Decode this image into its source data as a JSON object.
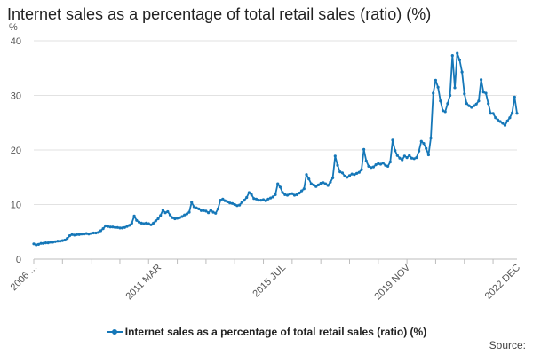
{
  "title": "Internet sales as a percentage of total retail sales (ratio) (%)",
  "source_label": "Source:",
  "colors": {
    "series": "#1577b8",
    "grid": "#e2e2e2",
    "axis": "#bdbdbd"
  },
  "chart_data": {
    "type": "line",
    "title": "Internet sales as a percentage of total retail sales (ratio) (%)",
    "xlabel": "",
    "ylabel": "%",
    "ylim": [
      0,
      40
    ],
    "yticks": [
      0,
      10,
      20,
      30,
      40
    ],
    "xtick_labels": [
      "2006 ...",
      "2011 MAR",
      "2015 JUL",
      "2019 NOV",
      "2022 DEC"
    ],
    "grid": true,
    "legend_position": "bottom",
    "x_start": "2006 NOV",
    "x_end": "2022 DEC",
    "series": [
      {
        "name": "Internet sales as a percentage of total retail sales (ratio) (%)",
        "values": [
          2.8,
          2.6,
          2.7,
          2.9,
          2.9,
          3.0,
          3.0,
          3.1,
          3.1,
          3.2,
          3.3,
          3.3,
          3.4,
          3.5,
          3.8,
          4.3,
          4.5,
          4.4,
          4.5,
          4.5,
          4.6,
          4.6,
          4.7,
          4.6,
          4.7,
          4.8,
          4.8,
          4.9,
          5.2,
          5.6,
          6.1,
          6.0,
          5.9,
          5.9,
          5.8,
          5.8,
          5.7,
          5.7,
          5.8,
          6.0,
          6.2,
          6.6,
          7.9,
          7.1,
          6.8,
          6.6,
          6.5,
          6.6,
          6.5,
          6.3,
          6.6,
          7.0,
          7.4,
          8.0,
          9.0,
          8.5,
          8.7,
          8.1,
          7.6,
          7.4,
          7.5,
          7.6,
          7.8,
          8.1,
          8.3,
          8.6,
          10.4,
          9.6,
          9.4,
          9.2,
          8.9,
          8.9,
          8.8,
          8.5,
          9.0,
          8.6,
          8.4,
          9.2,
          10.8,
          11.0,
          10.7,
          10.5,
          10.3,
          10.2,
          10.0,
          9.8,
          9.9,
          10.4,
          10.8,
          11.3,
          12.2,
          11.8,
          11.1,
          11.0,
          10.8,
          10.8,
          10.9,
          10.7,
          11.0,
          11.2,
          11.4,
          11.8,
          13.8,
          13.2,
          12.2,
          11.8,
          11.7,
          11.9,
          12.0,
          11.7,
          11.8,
          12.1,
          12.5,
          12.9,
          15.5,
          14.7,
          13.8,
          13.6,
          13.3,
          13.6,
          13.9,
          14.0,
          13.8,
          13.5,
          14.1,
          14.9,
          18.9,
          17.2,
          16.0,
          15.8,
          15.2,
          15.0,
          15.3,
          15.6,
          15.5,
          15.7,
          15.9,
          16.4,
          20.1,
          18.0,
          17.0,
          16.8,
          16.9,
          17.3,
          17.5,
          17.4,
          17.6,
          17.2,
          17.0,
          17.8,
          21.8,
          19.9,
          19.0,
          18.5,
          18.2,
          18.9,
          18.6,
          19.0,
          18.5,
          18.4,
          18.6,
          19.8,
          21.6,
          21.2,
          20.3,
          19.1,
          22.2,
          30.4,
          32.8,
          31.5,
          29.0,
          27.2,
          27.0,
          28.5,
          30.0,
          37.3,
          31.4,
          37.7,
          36.5,
          34.3,
          30.3,
          28.5,
          28.1,
          27.8,
          28.1,
          28.4,
          29.0,
          32.9,
          30.6,
          30.4,
          28.5,
          26.7,
          26.7,
          25.9,
          25.5,
          25.2,
          24.9,
          24.5,
          25.3,
          25.9,
          26.8,
          29.7,
          26.7
        ]
      }
    ]
  }
}
